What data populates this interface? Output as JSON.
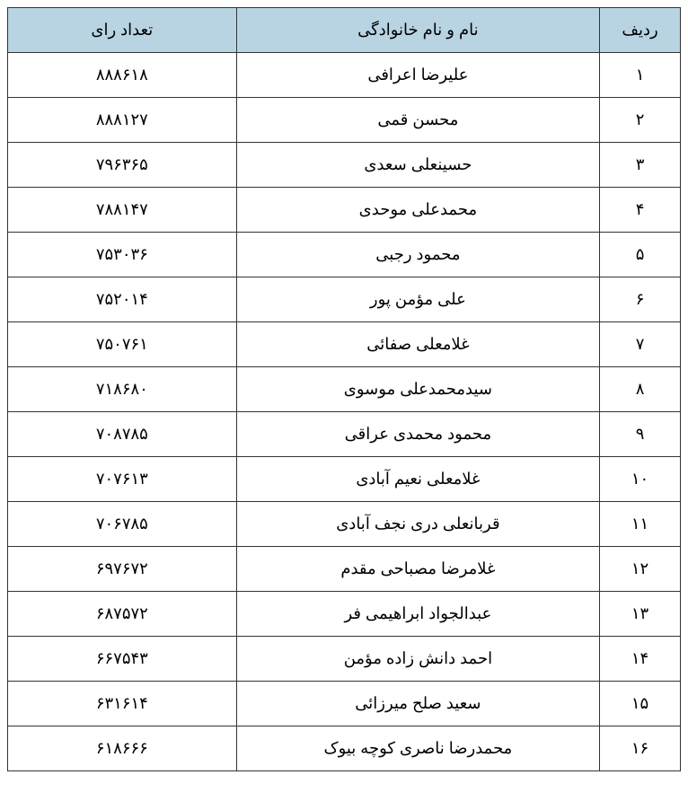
{
  "table": {
    "header_bg": "#b8d4e3",
    "border_color": "#333333",
    "columns": {
      "rank": {
        "label": "ردیف"
      },
      "name": {
        "label": "نام و نام خانوادگی"
      },
      "votes": {
        "label": "تعداد رای"
      }
    },
    "rows": [
      {
        "rank": "۱",
        "name": "علیرضا اعرافی",
        "votes": "۸۸۸۶۱۸"
      },
      {
        "rank": "۲",
        "name": "محسن قمی",
        "votes": "۸۸۸۱۲۷"
      },
      {
        "rank": "۳",
        "name": "حسینعلی سعدی",
        "votes": "۷۹۶۳۶۵"
      },
      {
        "rank": "۴",
        "name": "محمدعلی موحدی",
        "votes": "۷۸۸۱۴۷"
      },
      {
        "rank": "۵",
        "name": "محمود رجبی",
        "votes": "۷۵۳۰۳۶"
      },
      {
        "rank": "۶",
        "name": "علی مؤمن پور",
        "votes": "۷۵۲۰۱۴"
      },
      {
        "rank": "۷",
        "name": "غلامعلی صفائی",
        "votes": "۷۵۰۷۶۱"
      },
      {
        "rank": "۸",
        "name": "سیدمحمدعلی موسوی",
        "votes": "۷۱۸۶۸۰"
      },
      {
        "rank": "۹",
        "name": "محمود محمدی عراقی",
        "votes": "۷۰۸۷۸۵"
      },
      {
        "rank": "۱۰",
        "name": "غلامعلی نعیم آبادی",
        "votes": "۷۰۷۶۱۳"
      },
      {
        "rank": "۱۱",
        "name": "قربانعلی دری نجف آبادی",
        "votes": "۷۰۶۷۸۵"
      },
      {
        "rank": "۱۲",
        "name": "غلامرضا مصباحی مقدم",
        "votes": "۶۹۷۶۷۲"
      },
      {
        "rank": "۱۳",
        "name": "عبدالجواد ابراهیمی فر",
        "votes": "۶۸۷۵۷۲"
      },
      {
        "rank": "۱۴",
        "name": "احمد دانش زاده مؤمن",
        "votes": "۶۶۷۵۴۳"
      },
      {
        "rank": "۱۵",
        "name": "سعید صلح میرزائی",
        "votes": "۶۳۱۶۱۴"
      },
      {
        "rank": "۱۶",
        "name": "محمدرضا ناصری کوچه بیوک",
        "votes": "۶۱۸۶۶۶"
      }
    ]
  }
}
